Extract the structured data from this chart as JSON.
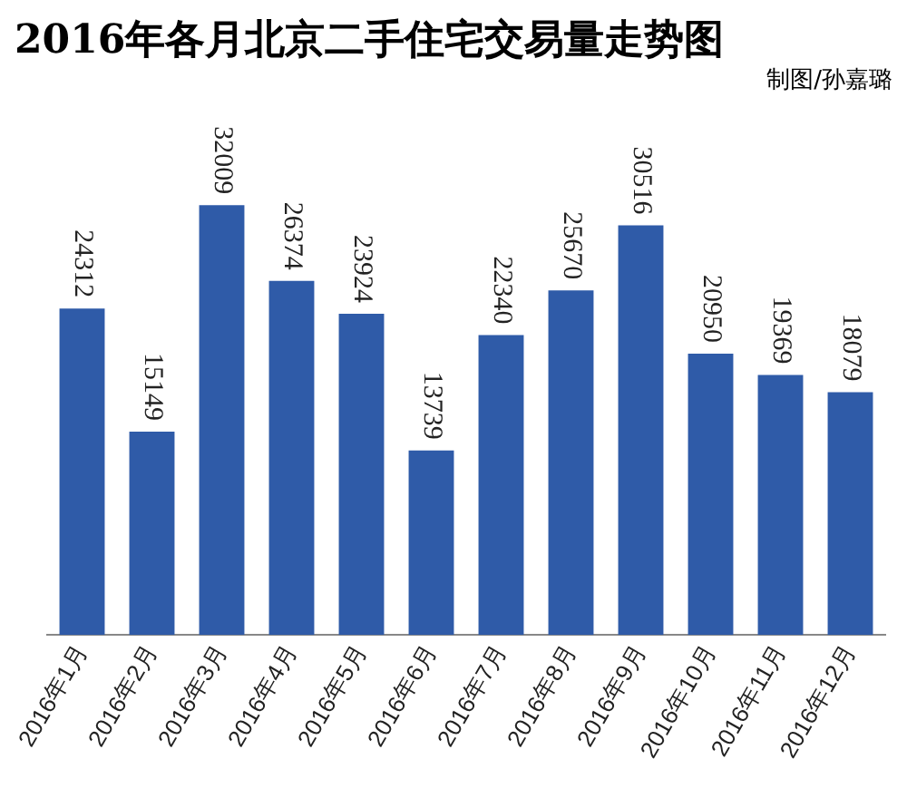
{
  "chart_data": {
    "type": "bar",
    "title": "2016年各月北京二手住宅交易量走势图",
    "subtitle": "制图/孙嘉璐",
    "categories": [
      "2016年1月",
      "2016年2月",
      "2016年3月",
      "2016年4月",
      "2016年5月",
      "2016年6月",
      "2016年7月",
      "2016年8月",
      "2016年9月",
      "2016年10月",
      "2016年11月",
      "2016年12月"
    ],
    "values": [
      24312,
      15149,
      32009,
      26374,
      23924,
      13739,
      22340,
      25670,
      30516,
      20950,
      19369,
      18079
    ],
    "color": "#2f5ba8",
    "data_labels": true,
    "grid": false,
    "legend": false
  }
}
